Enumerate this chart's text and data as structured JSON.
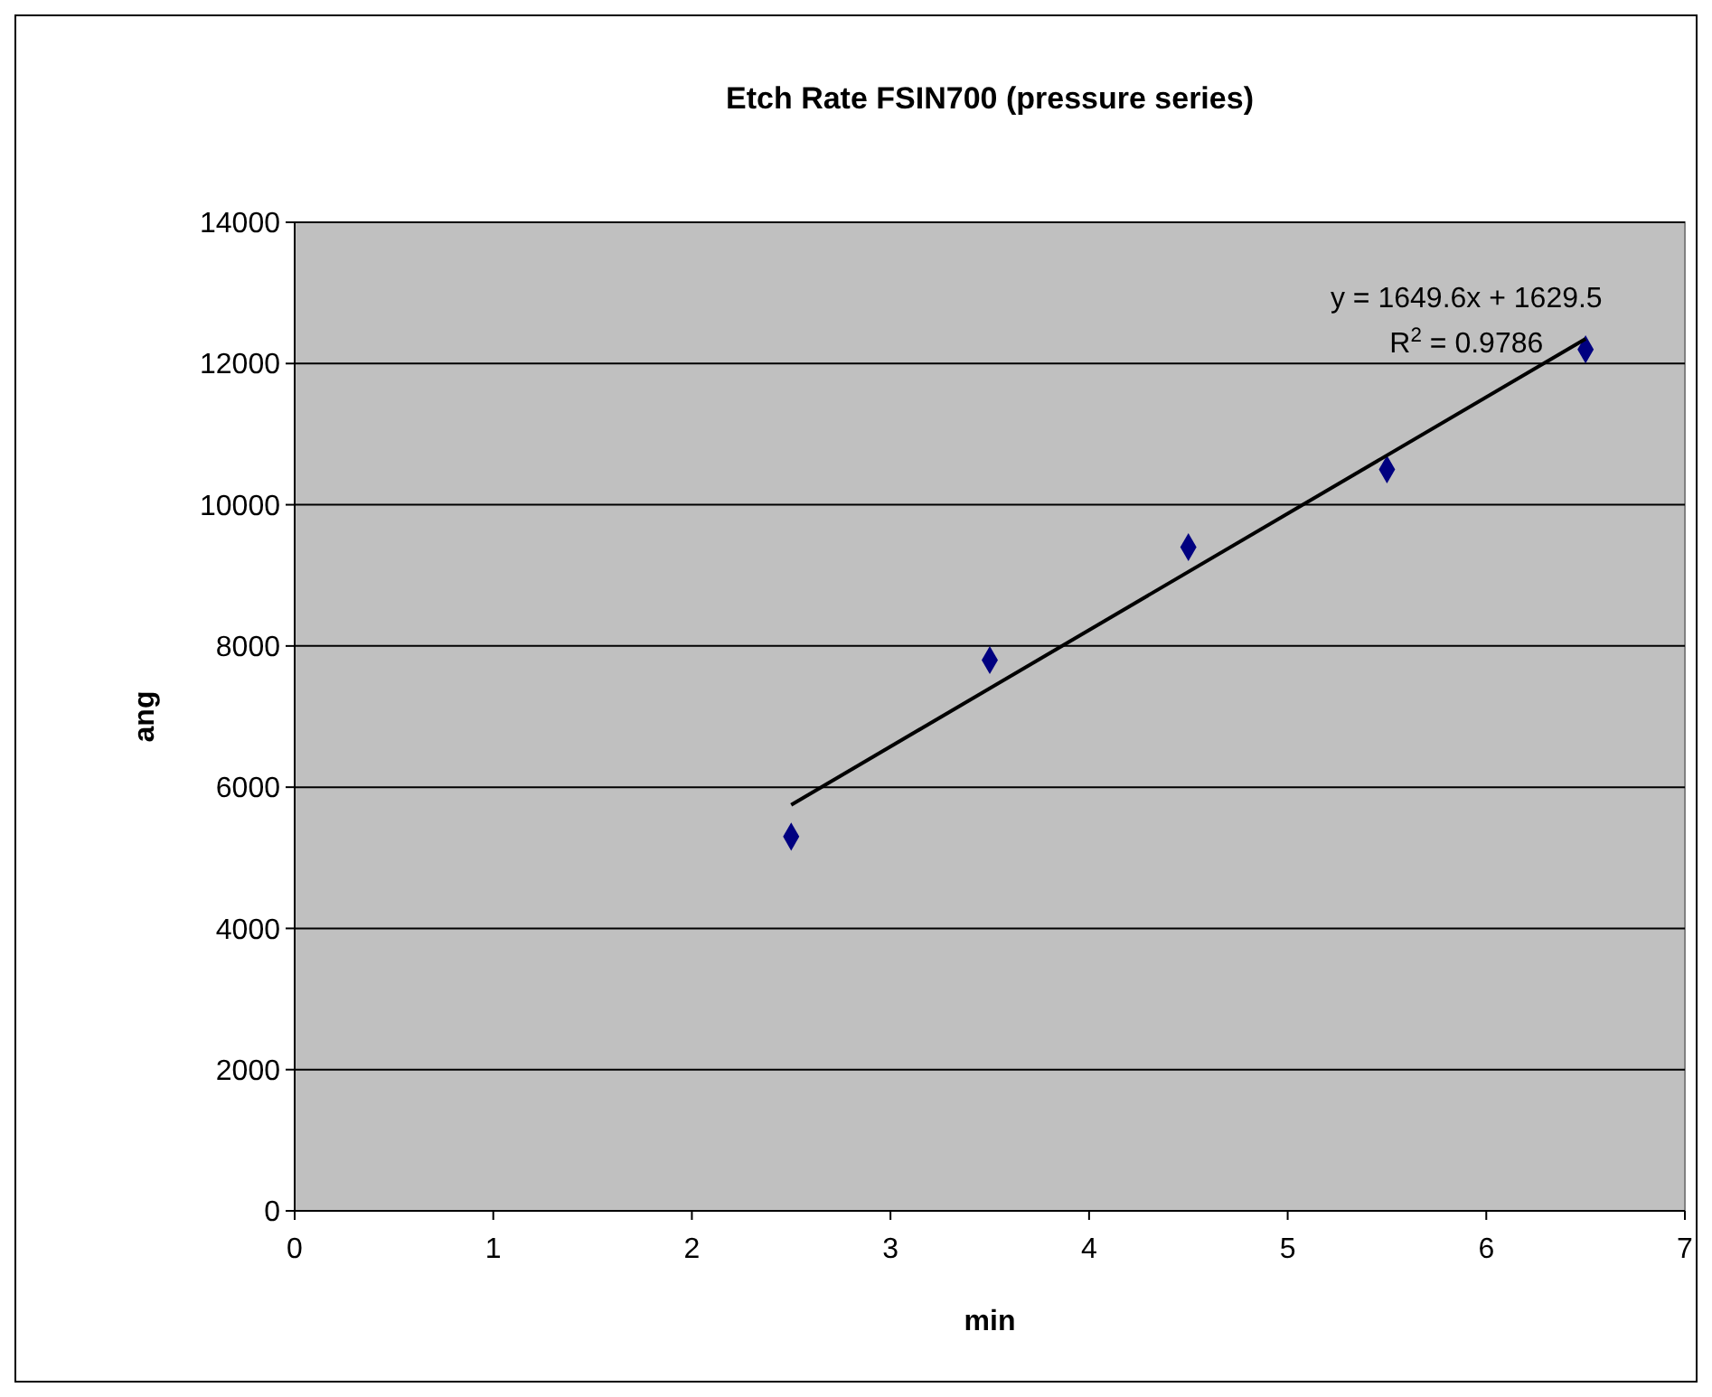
{
  "chart_data": {
    "type": "scatter",
    "title": "Etch Rate FSIN700 (pressure series)",
    "xlabel": "min",
    "ylabel": "ang",
    "xlim": [
      0,
      7
    ],
    "xticks": [
      0,
      1,
      2,
      3,
      4,
      5,
      6,
      7
    ],
    "ylim": [
      0,
      14000
    ],
    "yticks": [
      0,
      2000,
      4000,
      6000,
      8000,
      10000,
      12000,
      14000
    ],
    "grid": "y",
    "series": [
      {
        "marker": "diamond",
        "color": "#000080",
        "x": [
          2.5,
          3.5,
          4.5,
          5.5,
          6.5
        ],
        "values": [
          5300,
          7800,
          9400,
          10500,
          12200
        ]
      },
      {
        "type": "line",
        "color": "#000000",
        "x": [
          2.5,
          6.5
        ],
        "values": [
          5750,
          12350
        ]
      }
    ],
    "annotations": [
      "y = 1649.6x + 1629.5",
      "R$^{2}$ = 0.9786"
    ]
  }
}
